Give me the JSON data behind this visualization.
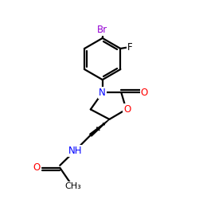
{
  "background_color": "#ffffff",
  "atom_colors": {
    "C": "#000000",
    "N": "#0000ff",
    "O": "#ff0000",
    "F": "#000000",
    "Br": "#9400d3"
  },
  "bond_color": "#000000",
  "bond_width": 1.6,
  "fig_size": [
    2.5,
    2.5
  ],
  "dpi": 100
}
